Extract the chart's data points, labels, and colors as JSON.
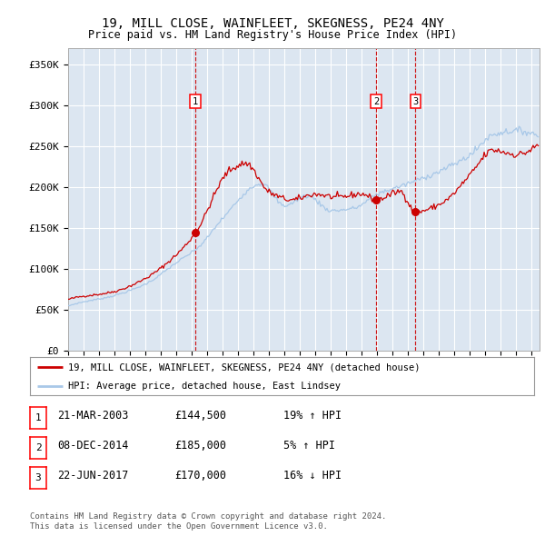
{
  "title1": "19, MILL CLOSE, WAINFLEET, SKEGNESS, PE24 4NY",
  "title2": "Price paid vs. HM Land Registry's House Price Index (HPI)",
  "ylabel_ticks": [
    "£0",
    "£50K",
    "£100K",
    "£150K",
    "£200K",
    "£250K",
    "£300K",
    "£350K"
  ],
  "ytick_values": [
    0,
    50000,
    100000,
    150000,
    200000,
    250000,
    300000,
    350000
  ],
  "ylim": [
    0,
    370000
  ],
  "xlim_start": 1995.0,
  "xlim_end": 2025.5,
  "bg_color": "#dce6f1",
  "grid_color": "#ffffff",
  "hpi_color": "#a8c8e8",
  "price_color": "#cc0000",
  "transactions": [
    {
      "label": "1",
      "date_x": 2003.22,
      "price": 144500
    },
    {
      "label": "2",
      "date_x": 2014.93,
      "price": 185000
    },
    {
      "label": "3",
      "date_x": 2017.47,
      "price": 170000
    }
  ],
  "table_rows": [
    {
      "num": "1",
      "date": "21-MAR-2003",
      "price": "£144,500",
      "pct": "19% ↑ HPI"
    },
    {
      "num": "2",
      "date": "08-DEC-2014",
      "price": "£185,000",
      "pct": "5% ↑ HPI"
    },
    {
      "num": "3",
      "date": "22-JUN-2017",
      "price": "£170,000",
      "pct": "16% ↓ HPI"
    }
  ],
  "legend_label_red": "19, MILL CLOSE, WAINFLEET, SKEGNESS, PE24 4NY (detached house)",
  "legend_label_blue": "HPI: Average price, detached house, East Lindsey",
  "footnote1": "Contains HM Land Registry data © Crown copyright and database right 2024.",
  "footnote2": "This data is licensed under the Open Government Licence v3.0."
}
